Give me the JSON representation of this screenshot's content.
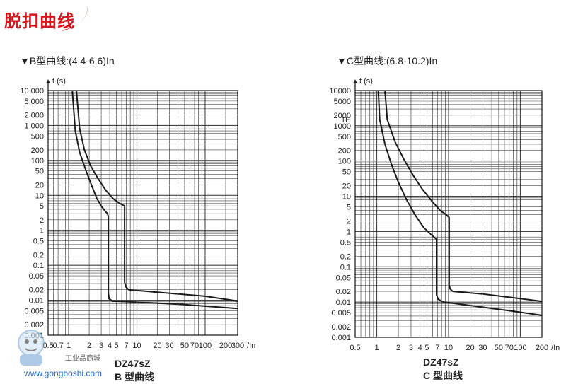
{
  "header": {
    "title": "脱扣曲线"
  },
  "colors": {
    "brand_red": "#d8141c",
    "grid": "#444444",
    "curve": "#1a1a1a",
    "watermark_blue": "#1d66c2"
  },
  "watermark": {
    "site": "www.gongboshi.com",
    "cn": "工业品商城"
  },
  "chart_data": [
    {
      "type": "line",
      "title": "▼B型曲线:(4.4-6.6)In",
      "model": "DZ47sZ",
      "curve_name": "B 型曲线",
      "ylabel": "t (s)",
      "xlabel": "I/In",
      "x_scale": "log",
      "y_scale": "log",
      "xlim": [
        0.5,
        300
      ],
      "ylim": [
        0.001,
        10000
      ],
      "x_ticks": [
        "0.5",
        "0.7",
        "1",
        "2",
        "3",
        "4",
        "5",
        "7",
        "10",
        "20",
        "30",
        "50",
        "70",
        "100",
        "200",
        "300"
      ],
      "y_ticks": [
        "0.001",
        "0.002",
        "0.005",
        "0.01",
        "0.02",
        "0.05",
        "0.1",
        "0.2",
        "0.5",
        "1",
        "2",
        "5",
        "10",
        "20",
        "50",
        "100",
        "200",
        "500",
        "1 000",
        "2 000",
        "5 000",
        "10 000"
      ],
      "series": [
        {
          "x": [
            1.13,
            1.25,
            1.45,
            1.8,
            2.2,
            2.6,
            3.0,
            3.4,
            3.7,
            3.8,
            3.8,
            3.9,
            4.4,
            10,
            50,
            300
          ],
          "y": [
            10000,
            700,
            170,
            50,
            18,
            8,
            5,
            3.6,
            3,
            2.5,
            0.016,
            0.011,
            0.0095,
            0.0088,
            0.0075,
            0.0058
          ]
        },
        {
          "x": [
            1.3,
            1.45,
            1.7,
            2.1,
            2.7,
            3.5,
            4.5,
            5.5,
            6.6,
            6.6,
            6.9,
            7.6,
            20,
            100,
            300
          ],
          "y": [
            10000,
            800,
            200,
            70,
            30,
            14,
            8,
            6,
            5,
            0.033,
            0.024,
            0.02,
            0.017,
            0.013,
            0.0095
          ]
        }
      ]
    },
    {
      "type": "line",
      "title": "▼C型曲线:(6.8-10.2)In",
      "model": "DZ47sZ",
      "curve_name": "C 型曲线",
      "ylabel": "t (s)",
      "xlabel": "I/In",
      "x_scale": "log",
      "y_scale": "log",
      "xlim": [
        0.5,
        200
      ],
      "ylim": [
        0.001,
        10000
      ],
      "x_ticks": [
        "0.5",
        "1",
        "2",
        "3",
        "4",
        "5",
        "7",
        "10",
        "20",
        "30",
        "50",
        "70",
        "100",
        "200"
      ],
      "y_ticks": [
        "0.001",
        "0.002",
        "0.005",
        "0.01",
        "0.02",
        "0.05",
        "0.1",
        "0.2",
        "0.5",
        "1",
        "2",
        "5",
        "10",
        "20",
        "50",
        "100",
        "200",
        "500",
        "1000",
        "1H",
        "2000",
        "5000",
        "10000"
      ],
      "series": [
        {
          "x": [
            1.05,
            1.1,
            1.3,
            1.6,
            2.0,
            2.6,
            3.4,
            4.5,
            5.8,
            6.8,
            6.8,
            7.2,
            8.5,
            20,
            80,
            200
          ],
          "y": [
            10000,
            1500,
            300,
            80,
            25,
            8,
            3,
            1.3,
            0.8,
            0.6,
            0.016,
            0.012,
            0.01,
            0.008,
            0.0055,
            0.0042
          ]
        },
        {
          "x": [
            1.3,
            1.4,
            1.8,
            2.4,
            3.2,
            4.3,
            5.8,
            7.6,
            9.3,
            10.2,
            10.2,
            10.6,
            11.5,
            30,
            100,
            200
          ],
          "y": [
            10000,
            1500,
            350,
            110,
            40,
            16,
            7.5,
            4,
            3,
            2.5,
            0.03,
            0.023,
            0.02,
            0.017,
            0.0125,
            0.0105
          ]
        }
      ]
    }
  ]
}
